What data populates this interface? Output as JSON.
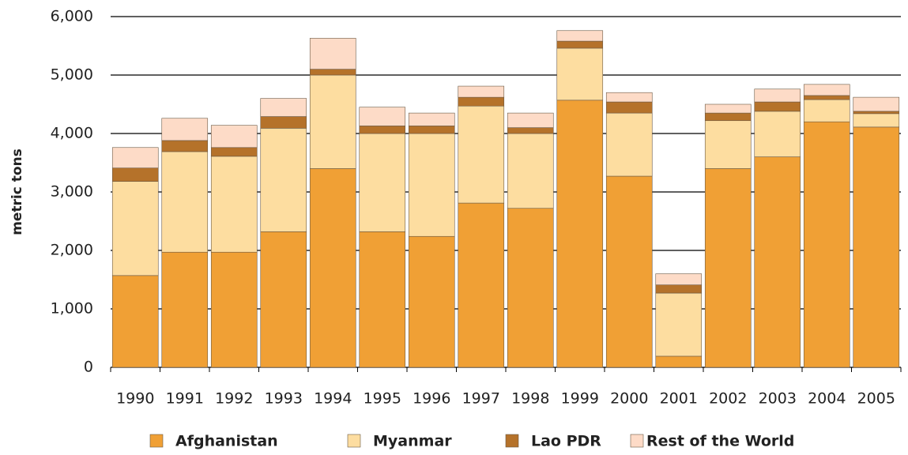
{
  "chart_data": {
    "type": "stacked_bar",
    "y_axis_label": "metric tons",
    "categories": [
      "1990",
      "1991",
      "1992",
      "1993",
      "1994",
      "1995",
      "1996",
      "1997",
      "1998",
      "1999",
      "2000",
      "2001",
      "2002",
      "2003",
      "2004",
      "2005"
    ],
    "series": [
      {
        "name": "Afghanistan",
        "color": "#f0a035",
        "values": [
          1570,
          1970,
          1970,
          2320,
          3400,
          2320,
          2240,
          2810,
          2720,
          4570,
          3270,
          190,
          3400,
          3600,
          4200,
          4110
        ]
      },
      {
        "name": "Myanmar",
        "color": "#fddda0",
        "values": [
          1610,
          1720,
          1640,
          1770,
          1600,
          1680,
          1760,
          1660,
          1280,
          890,
          1080,
          1080,
          820,
          780,
          380,
          230
        ]
      },
      {
        "name": "Lao PDR",
        "color": "#b5722a",
        "values": [
          230,
          190,
          150,
          200,
          100,
          130,
          130,
          150,
          100,
          120,
          190,
          140,
          130,
          160,
          70,
          40
        ]
      },
      {
        "name": "Rest of the World",
        "color": "#fddbc7",
        "values": [
          350,
          380,
          380,
          310,
          530,
          320,
          220,
          190,
          250,
          180,
          160,
          190,
          150,
          220,
          190,
          240
        ]
      }
    ],
    "ylim": [
      0,
      6000
    ],
    "yticks": [
      0,
      {
        "value": 1000,
        "label": "1,000"
      },
      {
        "value": 2000,
        "label": "2,000"
      },
      {
        "value": 3000,
        "label": "3,000"
      },
      {
        "value": 4000,
        "label": "4,000"
      },
      {
        "value": 5000,
        "label": "5,000"
      },
      {
        "value": 6000,
        "label": "6,000"
      }
    ],
    "grid": true,
    "legend": "bottom"
  }
}
